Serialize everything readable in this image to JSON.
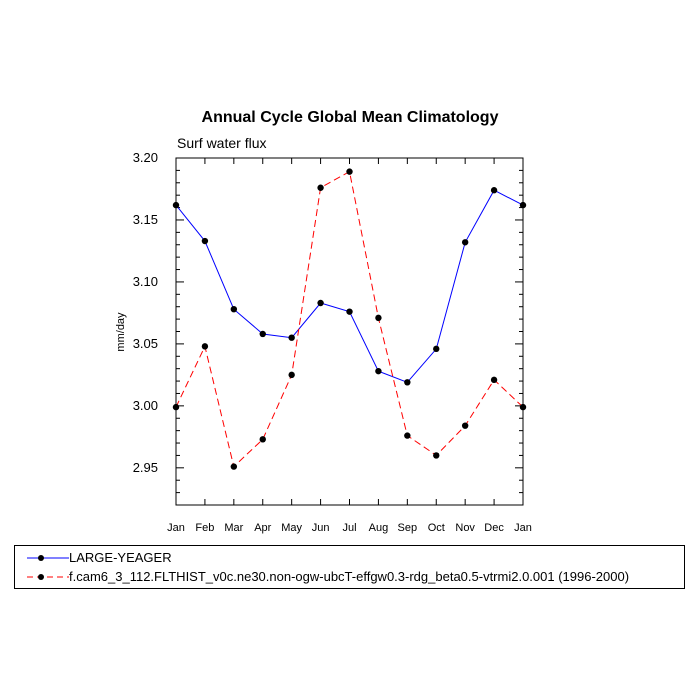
{
  "chart_data": {
    "type": "line",
    "title": "Annual Cycle Global Mean Climatology",
    "subtitle": "Surf water flux",
    "xlabel": "",
    "ylabel": "mm/day",
    "categories": [
      "Jan",
      "Feb",
      "Mar",
      "Apr",
      "May",
      "Jun",
      "Jul",
      "Aug",
      "Sep",
      "Oct",
      "Nov",
      "Dec",
      "Jan"
    ],
    "ylim": [
      2.92,
      3.2
    ],
    "yticks": [
      2.95,
      3.0,
      3.05,
      3.1,
      3.15,
      3.2
    ],
    "ytick_labels": [
      "2.95",
      "3.00",
      "3.05",
      "3.10",
      "3.15",
      "3.20"
    ],
    "grid": false,
    "legend_position": "bottom",
    "series": [
      {
        "name": "LARGE-YEAGER",
        "color": "#0000ff",
        "style": "solid",
        "values": [
          3.162,
          3.133,
          3.078,
          3.058,
          3.055,
          3.083,
          3.076,
          3.028,
          3.019,
          3.046,
          3.132,
          3.174,
          3.162
        ]
      },
      {
        "name": "f.cam6_3_112.FLTHIST_v0c.ne30.non-ogw-ubcT-effgw0.3-rdg_beta0.5-vtrmi2.0.001 (1996-2000)",
        "color": "#ff0000",
        "style": "dashed",
        "values": [
          2.999,
          3.048,
          2.951,
          2.973,
          3.025,
          3.176,
          3.189,
          3.071,
          2.976,
          2.96,
          2.984,
          3.021,
          2.999
        ]
      }
    ]
  }
}
